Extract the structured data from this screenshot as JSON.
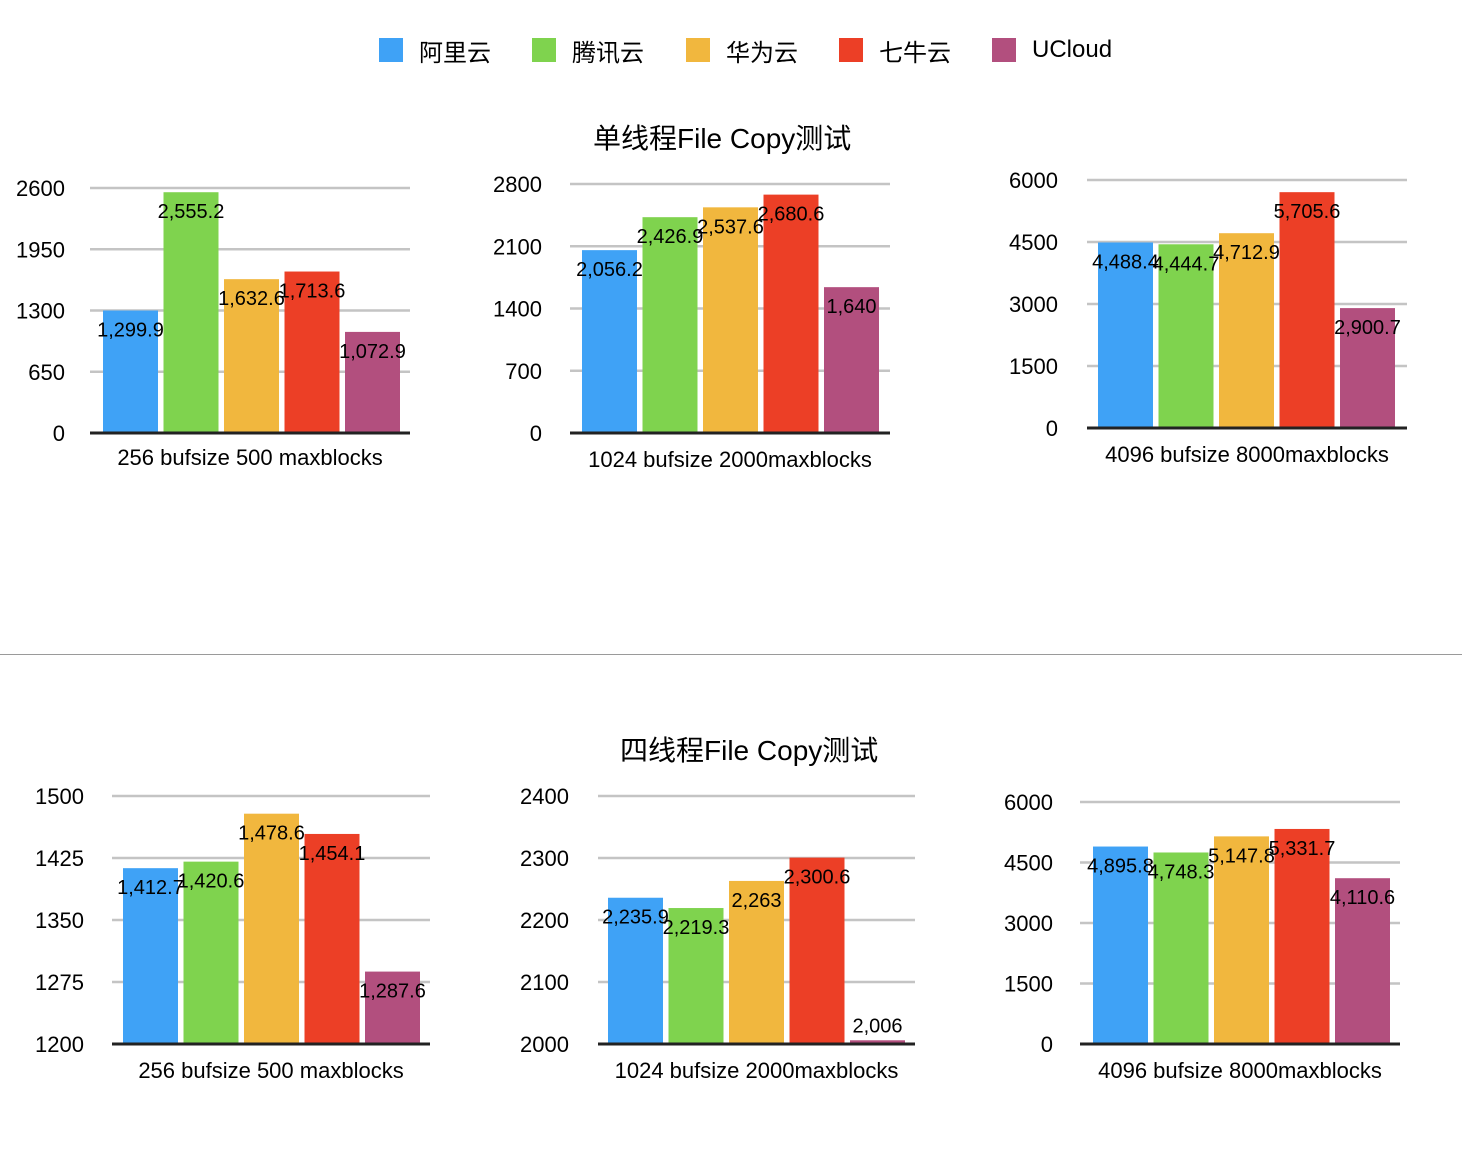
{
  "legend": [
    {
      "name": "阿里云",
      "color": "#3FA2F6"
    },
    {
      "name": "腾讯云",
      "color": "#7FD34E"
    },
    {
      "name": "华为云",
      "color": "#F1B73E"
    },
    {
      "name": "七牛云",
      "color": "#EC3F26"
    },
    {
      "name": "UCloud",
      "color": "#B24F7E"
    }
  ],
  "sections": {
    "single_title": "单线程File Copy测试",
    "multi_title": "四线程File Copy测试"
  },
  "chart_data": [
    {
      "type": "bar",
      "group": "单线程File Copy测试",
      "categories": [
        "256 bufsize 500 maxblocks"
      ],
      "series": [
        {
          "name": "阿里云",
          "values": [
            1299.9
          ],
          "label": "1,299.9"
        },
        {
          "name": "腾讯云",
          "values": [
            2555.2
          ],
          "label": "2,555.2"
        },
        {
          "name": "华为云",
          "values": [
            1632.6
          ],
          "label": "1,632.6"
        },
        {
          "name": "七牛云",
          "values": [
            1713.6
          ],
          "label": "1,713.6"
        },
        {
          "name": "UCloud",
          "values": [
            1072.9
          ],
          "label": "1,072.9"
        }
      ],
      "ylim": [
        0,
        2600
      ],
      "yticks": [
        "0",
        "650",
        "1300",
        "1950",
        "2600"
      ],
      "grid": true,
      "legend": "top"
    },
    {
      "type": "bar",
      "group": "单线程File Copy测试",
      "categories": [
        "1024 bufsize 2000maxblocks"
      ],
      "series": [
        {
          "name": "阿里云",
          "values": [
            2056.2
          ],
          "label": "2,056.2"
        },
        {
          "name": "腾讯云",
          "values": [
            2426.9
          ],
          "label": "2,426.9"
        },
        {
          "name": "华为云",
          "values": [
            2537.6
          ],
          "label": "2,537.6"
        },
        {
          "name": "七牛云",
          "values": [
            2680.6
          ],
          "label": "2,680.6"
        },
        {
          "name": "UCloud",
          "values": [
            1640
          ],
          "label": "1,640"
        }
      ],
      "ylim": [
        0,
        2800
      ],
      "yticks": [
        "0",
        "700",
        "1400",
        "2100",
        "2800"
      ],
      "grid": true,
      "legend": "top"
    },
    {
      "type": "bar",
      "group": "单线程File Copy测试",
      "categories": [
        "4096 bufsize 8000maxblocks"
      ],
      "series": [
        {
          "name": "阿里云",
          "values": [
            4488.4
          ],
          "label": "4,488.4"
        },
        {
          "name": "腾讯云",
          "values": [
            4444.7
          ],
          "label": "4,444.7"
        },
        {
          "name": "华为云",
          "values": [
            4712.9
          ],
          "label": "4,712.9"
        },
        {
          "name": "七牛云",
          "values": [
            5705.6
          ],
          "label": "5,705.6"
        },
        {
          "name": "UCloud",
          "values": [
            2900.7
          ],
          "label": "2,900.7"
        }
      ],
      "ylim": [
        0,
        6000
      ],
      "yticks": [
        "0",
        "1500",
        "3000",
        "4500",
        "6000"
      ],
      "grid": true,
      "legend": "top"
    },
    {
      "type": "bar",
      "group": "四线程File Copy测试",
      "categories": [
        "256 bufsize 500 maxblocks"
      ],
      "series": [
        {
          "name": "阿里云",
          "values": [
            1412.7
          ],
          "label": "1,412.7"
        },
        {
          "name": "腾讯云",
          "values": [
            1420.6
          ],
          "label": "1,420.6"
        },
        {
          "name": "华为云",
          "values": [
            1478.6
          ],
          "label": "1,478.6"
        },
        {
          "name": "七牛云",
          "values": [
            1454.1
          ],
          "label": "1,454.1"
        },
        {
          "name": "UCloud",
          "values": [
            1287.6
          ],
          "label": "1,287.6"
        }
      ],
      "ylim": [
        1200,
        1500
      ],
      "yticks": [
        "1200",
        "1275",
        "1350",
        "1425",
        "1500"
      ],
      "grid": true,
      "legend": "top"
    },
    {
      "type": "bar",
      "group": "四线程File Copy测试",
      "categories": [
        "1024 bufsize 2000maxblocks"
      ],
      "series": [
        {
          "name": "阿里云",
          "values": [
            2235.9
          ],
          "label": "2,235.9"
        },
        {
          "name": "腾讯云",
          "values": [
            2219.3
          ],
          "label": "2,219.3"
        },
        {
          "name": "华为云",
          "values": [
            2263
          ],
          "label": "2,263"
        },
        {
          "name": "七牛云",
          "values": [
            2300.6
          ],
          "label": "2,300.6"
        },
        {
          "name": "UCloud",
          "values": [
            2006
          ],
          "label": "2,006"
        }
      ],
      "ylim": [
        2000,
        2400
      ],
      "yticks": [
        "2000",
        "2100",
        "2200",
        "2300",
        "2400"
      ],
      "grid": true,
      "legend": "top"
    },
    {
      "type": "bar",
      "group": "四线程File Copy测试",
      "categories": [
        "4096 bufsize 8000maxblocks"
      ],
      "series": [
        {
          "name": "阿里云",
          "values": [
            4895.8
          ],
          "label": "4,895.8"
        },
        {
          "name": "腾讯云",
          "values": [
            4748.3
          ],
          "label": "4,748.3"
        },
        {
          "name": "华为云",
          "values": [
            5147.8
          ],
          "label": "5,147.8"
        },
        {
          "name": "七牛云",
          "values": [
            5331.7
          ],
          "label": "5,331.7"
        },
        {
          "name": "UCloud",
          "values": [
            4110.6
          ],
          "label": "4,110.6"
        }
      ],
      "ylim": [
        0,
        6000
      ],
      "yticks": [
        "0",
        "1500",
        "3000",
        "4500",
        "6000"
      ],
      "grid": true,
      "legend": "top"
    }
  ]
}
